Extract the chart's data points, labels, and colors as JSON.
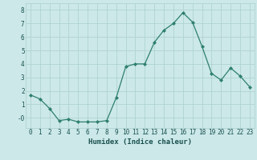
{
  "x": [
    0,
    1,
    2,
    3,
    4,
    5,
    6,
    7,
    8,
    9,
    10,
    11,
    12,
    13,
    14,
    15,
    16,
    17,
    18,
    19,
    20,
    21,
    22,
    23
  ],
  "y": [
    1.7,
    1.4,
    0.7,
    -0.2,
    -0.1,
    -0.3,
    -0.3,
    -0.3,
    -0.2,
    1.5,
    3.8,
    4.0,
    4.0,
    5.6,
    6.5,
    7.0,
    7.8,
    7.1,
    5.3,
    3.3,
    2.8,
    3.7,
    3.1,
    2.3
  ],
  "line_color": "#2e7f6e",
  "marker": "D",
  "marker_size": 2,
  "bg_color": "#cce8e8",
  "grid_color": "#aacfcf",
  "xlabel": "Humidex (Indice chaleur)",
  "xlim": [
    -0.5,
    23.5
  ],
  "ylim": [
    -0.75,
    8.5
  ],
  "yticks": [
    0,
    1,
    2,
    3,
    4,
    5,
    6,
    7,
    8
  ],
  "ytick_labels": [
    "-0",
    "1",
    "2",
    "3",
    "4",
    "5",
    "6",
    "7",
    "8"
  ],
  "xticks": [
    0,
    1,
    2,
    3,
    4,
    5,
    6,
    7,
    8,
    9,
    10,
    11,
    12,
    13,
    14,
    15,
    16,
    17,
    18,
    19,
    20,
    21,
    22,
    23
  ],
  "tick_fontsize": 5.5,
  "xlabel_fontsize": 6.5,
  "tick_color": "#1a5050",
  "linewidth": 0.9
}
